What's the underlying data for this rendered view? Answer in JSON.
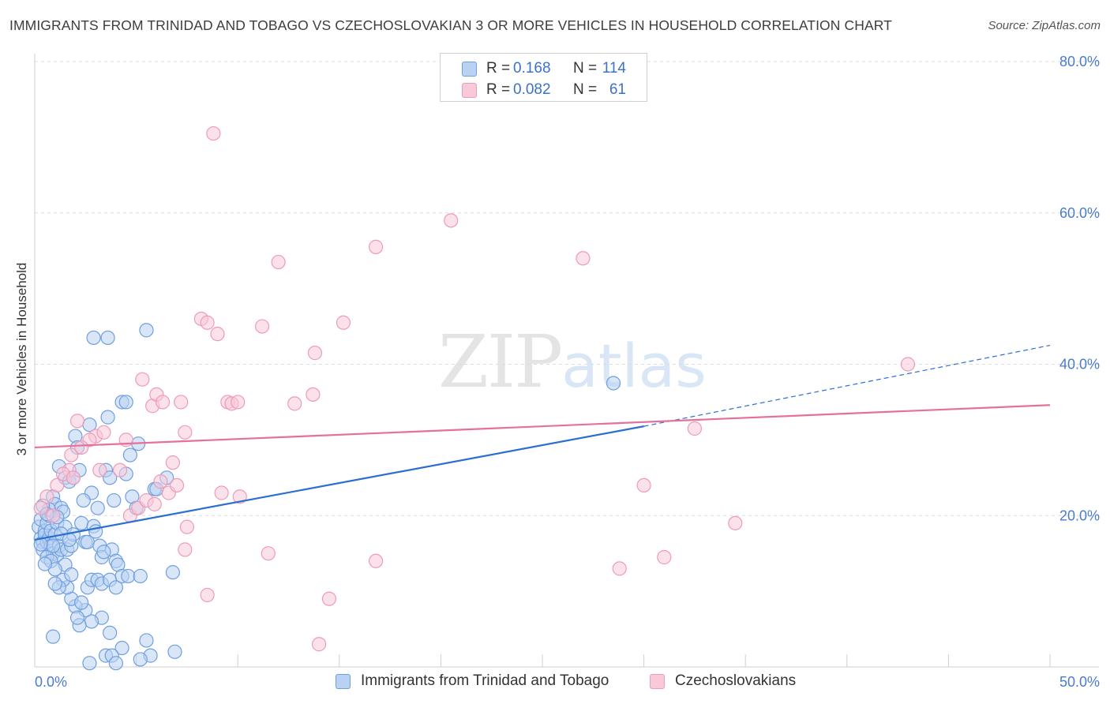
{
  "chart_data": {
    "type": "scatter",
    "title": "IMMIGRANTS FROM TRINIDAD AND TOBAGO VS CZECHOSLOVAKIAN 3 OR MORE VEHICLES IN HOUSEHOLD CORRELATION CHART",
    "source": "Source: ZipAtlas.com",
    "xlabel": "",
    "ylabel": "3 or more Vehicles in Household",
    "xlim": [
      0,
      50
    ],
    "ylim": [
      0,
      80
    ],
    "x_tick_labels": [
      "0.0%",
      "50.0%"
    ],
    "y_ticks": [
      20,
      40,
      60,
      80
    ],
    "y_tick_labels": [
      "20.0%",
      "40.0%",
      "60.0%",
      "80.0%"
    ],
    "grid": true,
    "legend_position": "top-center",
    "watermark": {
      "zip": "ZIP",
      "atlas": "atlas"
    },
    "series": [
      {
        "name": "Immigrants from Trinidad and Tobago",
        "color": "#6f9fe0",
        "fill": "#b9d1f3",
        "line_color": "#2a6fd0",
        "R": "0.168",
        "N": "114",
        "trend": {
          "x0": 0,
          "y0": 16.8,
          "x1": 30,
          "y1": 31.8,
          "x_dash_end": 50,
          "y_dash_end": 42.5
        },
        "points": [
          [
            0.2,
            18.5
          ],
          [
            0.3,
            17.0
          ],
          [
            0.3,
            19.5
          ],
          [
            0.4,
            16.5
          ],
          [
            0.4,
            15.5
          ],
          [
            0.5,
            18.0
          ],
          [
            0.5,
            17.5
          ],
          [
            0.6,
            16.5
          ],
          [
            0.6,
            19.0
          ],
          [
            0.7,
            17.0
          ],
          [
            0.7,
            20.0
          ],
          [
            0.8,
            18.0
          ],
          [
            0.8,
            16.0
          ],
          [
            0.9,
            15.0
          ],
          [
            0.9,
            22.5
          ],
          [
            1.0,
            17.5
          ],
          [
            1.0,
            21.5
          ],
          [
            1.1,
            14.8
          ],
          [
            1.1,
            19.0
          ],
          [
            1.2,
            16.0
          ],
          [
            1.2,
            26.5
          ],
          [
            1.3,
            21.0
          ],
          [
            1.3,
            15.5
          ],
          [
            1.4,
            20.5
          ],
          [
            1.5,
            25.0
          ],
          [
            1.5,
            18.5
          ],
          [
            1.6,
            15.5
          ],
          [
            1.7,
            24.5
          ],
          [
            1.8,
            16.0
          ],
          [
            1.9,
            25.0
          ],
          [
            2.0,
            30.5
          ],
          [
            2.1,
            29.0
          ],
          [
            2.2,
            26.0
          ],
          [
            2.3,
            19.0
          ],
          [
            2.5,
            16.5
          ],
          [
            2.6,
            16.5
          ],
          [
            2.7,
            32.0
          ],
          [
            2.8,
            23.0
          ],
          [
            2.9,
            43.5
          ],
          [
            3.1,
            21.0
          ],
          [
            3.2,
            16.0
          ],
          [
            3.3,
            14.5
          ],
          [
            3.5,
            26.0
          ],
          [
            3.6,
            33.0
          ],
          [
            3.6,
            43.5
          ],
          [
            3.7,
            25.0
          ],
          [
            3.8,
            15.5
          ],
          [
            3.9,
            22.0
          ],
          [
            4.0,
            14.0
          ],
          [
            4.1,
            13.5
          ],
          [
            4.3,
            35.0
          ],
          [
            4.5,
            35.0
          ],
          [
            4.5,
            25.5
          ],
          [
            4.7,
            28.0
          ],
          [
            4.8,
            22.5
          ],
          [
            5.0,
            21.0
          ],
          [
            5.1,
            29.5
          ],
          [
            5.5,
            3.5
          ],
          [
            5.7,
            1.5
          ],
          [
            4.3,
            2.5
          ],
          [
            3.5,
            1.5
          ],
          [
            3.8,
            1.5
          ],
          [
            3.3,
            6.5
          ],
          [
            3.7,
            4.5
          ],
          [
            2.8,
            6.0
          ],
          [
            2.5,
            7.5
          ],
          [
            2.0,
            8.0
          ],
          [
            2.2,
            5.5
          ],
          [
            1.8,
            9.0
          ],
          [
            1.6,
            10.5
          ],
          [
            1.4,
            11.5
          ],
          [
            1.2,
            10.5
          ],
          [
            0.9,
            4.0
          ],
          [
            1.0,
            11.0
          ],
          [
            2.3,
            8.5
          ],
          [
            2.1,
            6.5
          ],
          [
            2.6,
            10.5
          ],
          [
            2.8,
            11.5
          ],
          [
            3.1,
            11.5
          ],
          [
            3.3,
            11.0
          ],
          [
            3.7,
            11.5
          ],
          [
            4.0,
            10.5
          ],
          [
            4.3,
            12.0
          ],
          [
            4.6,
            12.0
          ],
          [
            5.2,
            12.0
          ],
          [
            5.5,
            44.5
          ],
          [
            5.9,
            23.5
          ],
          [
            6.5,
            25.0
          ],
          [
            6.0,
            23.5
          ],
          [
            5.2,
            1.0
          ],
          [
            6.9,
            2.0
          ],
          [
            6.8,
            12.5
          ],
          [
            2.7,
            0.5
          ],
          [
            4.0,
            0.5
          ],
          [
            0.6,
            14.5
          ],
          [
            0.9,
            16.0
          ],
          [
            1.5,
            13.5
          ],
          [
            1.9,
            17.5
          ],
          [
            0.7,
            20.8
          ],
          [
            1.1,
            19.8
          ],
          [
            0.4,
            21.3
          ],
          [
            0.3,
            16.2
          ],
          [
            0.8,
            14.0
          ],
          [
            2.4,
            22.0
          ],
          [
            1.3,
            17.6
          ],
          [
            1.7,
            16.8
          ],
          [
            2.9,
            18.6
          ],
          [
            3.0,
            17.9
          ],
          [
            3.4,
            15.2
          ],
          [
            1.0,
            12.9
          ],
          [
            0.5,
            13.6
          ],
          [
            0.6,
            20.2
          ],
          [
            28.5,
            37.5
          ],
          [
            1.8,
            12.2
          ]
        ]
      },
      {
        "name": "Czechoslovakians",
        "color": "#ef9bb6",
        "fill": "#f8c9d8",
        "line_color": "#e5709a",
        "R": "0.082",
        "N": "61",
        "trend": {
          "x0": 0,
          "y0": 29.0,
          "x1": 50,
          "y1": 34.6
        },
        "points": [
          [
            8.8,
            70.5
          ],
          [
            20.5,
            59.0
          ],
          [
            16.8,
            55.5
          ],
          [
            12.0,
            53.5
          ],
          [
            27.0,
            54.0
          ],
          [
            8.2,
            46.0
          ],
          [
            8.5,
            45.5
          ],
          [
            9.0,
            44.0
          ],
          [
            11.2,
            45.0
          ],
          [
            15.2,
            45.5
          ],
          [
            13.8,
            41.5
          ],
          [
            43.0,
            40.0
          ],
          [
            5.3,
            38.0
          ],
          [
            5.8,
            34.5
          ],
          [
            6.0,
            36.0
          ],
          [
            6.3,
            35.0
          ],
          [
            7.2,
            35.0
          ],
          [
            9.5,
            35.0
          ],
          [
            9.7,
            34.8
          ],
          [
            10.0,
            35.0
          ],
          [
            12.8,
            34.8
          ],
          [
            13.7,
            36.0
          ],
          [
            7.4,
            31.0
          ],
          [
            2.1,
            32.5
          ],
          [
            3.0,
            30.5
          ],
          [
            3.4,
            31.0
          ],
          [
            2.7,
            30.0
          ],
          [
            1.8,
            28.0
          ],
          [
            1.7,
            26.0
          ],
          [
            1.1,
            24.0
          ],
          [
            1.4,
            25.5
          ],
          [
            1.9,
            25.0
          ],
          [
            3.2,
            26.0
          ],
          [
            4.2,
            26.0
          ],
          [
            4.7,
            20.0
          ],
          [
            5.1,
            21.0
          ],
          [
            5.5,
            22.0
          ],
          [
            5.9,
            21.5
          ],
          [
            6.2,
            24.5
          ],
          [
            6.8,
            27.0
          ],
          [
            6.6,
            23.0
          ],
          [
            7.0,
            24.0
          ],
          [
            7.4,
            15.5
          ],
          [
            7.5,
            18.5
          ],
          [
            9.2,
            23.0
          ],
          [
            10.1,
            22.5
          ],
          [
            11.5,
            15.0
          ],
          [
            16.8,
            14.0
          ],
          [
            28.8,
            13.0
          ],
          [
            30.0,
            24.0
          ],
          [
            31.0,
            14.5
          ],
          [
            32.5,
            31.5
          ],
          [
            34.5,
            19.0
          ],
          [
            8.5,
            9.5
          ],
          [
            14.5,
            9.0
          ],
          [
            14.0,
            3.0
          ],
          [
            0.6,
            22.5
          ],
          [
            0.9,
            20.0
          ],
          [
            0.3,
            21.0
          ],
          [
            2.3,
            29.0
          ],
          [
            4.5,
            30.0
          ]
        ]
      }
    ]
  }
}
